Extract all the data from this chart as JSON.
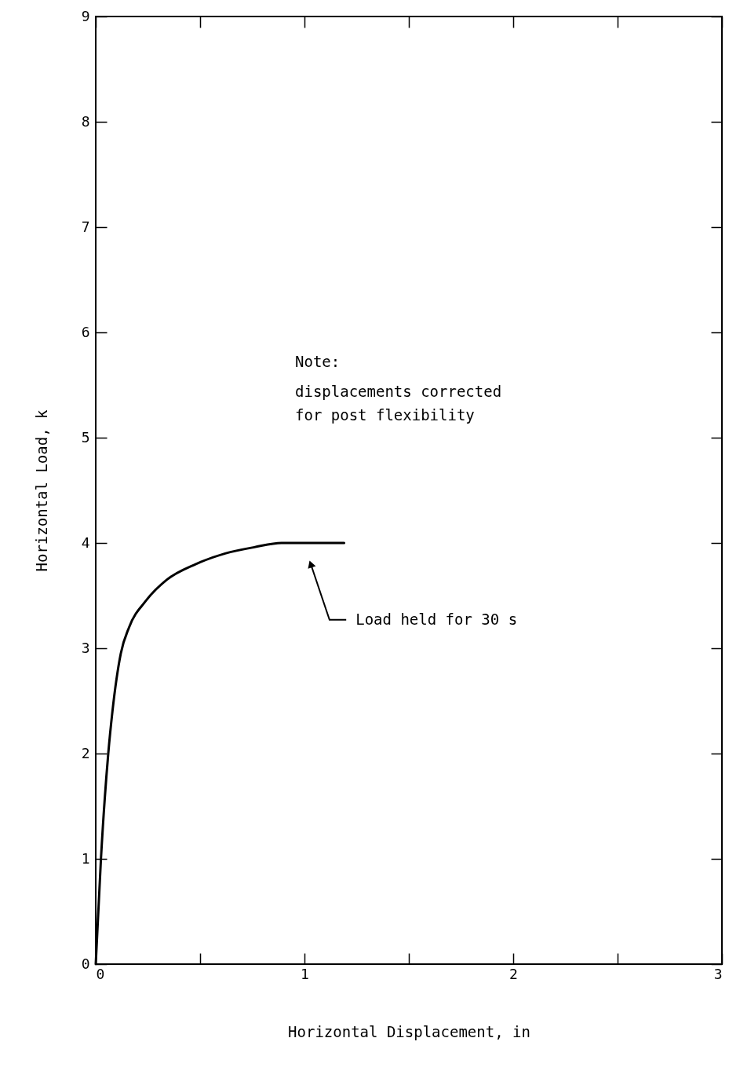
{
  "chart_data": {
    "type": "line",
    "xlabel": "Horizontal Displacement, in",
    "ylabel": "Horizontal Load, k",
    "x": [
      0,
      0.025,
      0.06,
      0.08,
      0.12,
      0.16,
      0.24,
      0.34,
      0.48,
      0.62,
      0.76,
      0.89,
      1.19
    ],
    "series": [
      {
        "color": "#000000",
        "values": [
          0,
          1.0,
          2.0,
          2.4,
          2.95,
          3.2,
          3.45,
          3.65,
          3.8,
          3.9,
          3.96,
          4.0,
          4.0
        ]
      }
    ],
    "xlim": [
      0,
      3
    ],
    "xticks": [
      0,
      {
        "value": 0.5,
        "label": null
      },
      1,
      {
        "value": 1.5,
        "label": null
      },
      2,
      {
        "value": 2.5,
        "label": null
      },
      3
    ],
    "ylim": [
      0,
      9
    ],
    "yticks": [
      0,
      1,
      2,
      3,
      4,
      5,
      6,
      7,
      8,
      9
    ],
    "grid": false,
    "marker": "none",
    "line_style": "solid",
    "annotations": [
      "Note:",
      "displacements corrected",
      "for post flexibility",
      {
        "text": "Load held for 30 s",
        "x": 1.03,
        "y": 3.8
      }
    ]
  }
}
